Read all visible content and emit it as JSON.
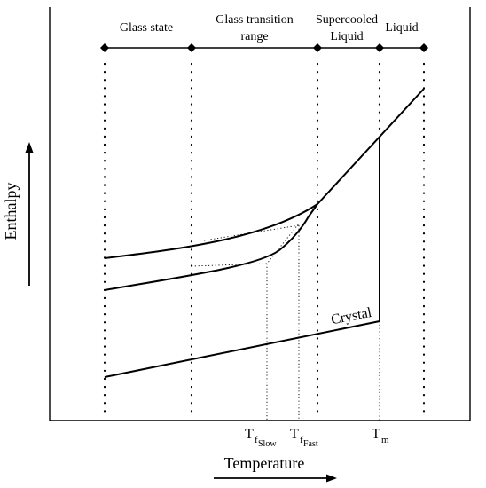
{
  "regions": {
    "glass_state": "Glass state",
    "glass_transition_line1": "Glass transition",
    "glass_transition_line2": "range",
    "supercooled_line1": "Supercooled",
    "supercooled_line2": "Liquid",
    "liquid": "Liquid"
  },
  "curves": {
    "crystal_label": "Crystal"
  },
  "axes": {
    "y_label": "Enthalpy",
    "x_label": "Temperature"
  },
  "ticks": {
    "tf_slow_main": "T",
    "tf_slow_sub": "f",
    "tf_slow_subsub": "Slow",
    "tf_fast_main": "T",
    "tf_fast_sub": "f",
    "tf_fast_subsub": "Fast",
    "tm_main": "T",
    "tm_sub": "m"
  },
  "colors": {
    "ink": "#000000",
    "background": "#ffffff"
  }
}
